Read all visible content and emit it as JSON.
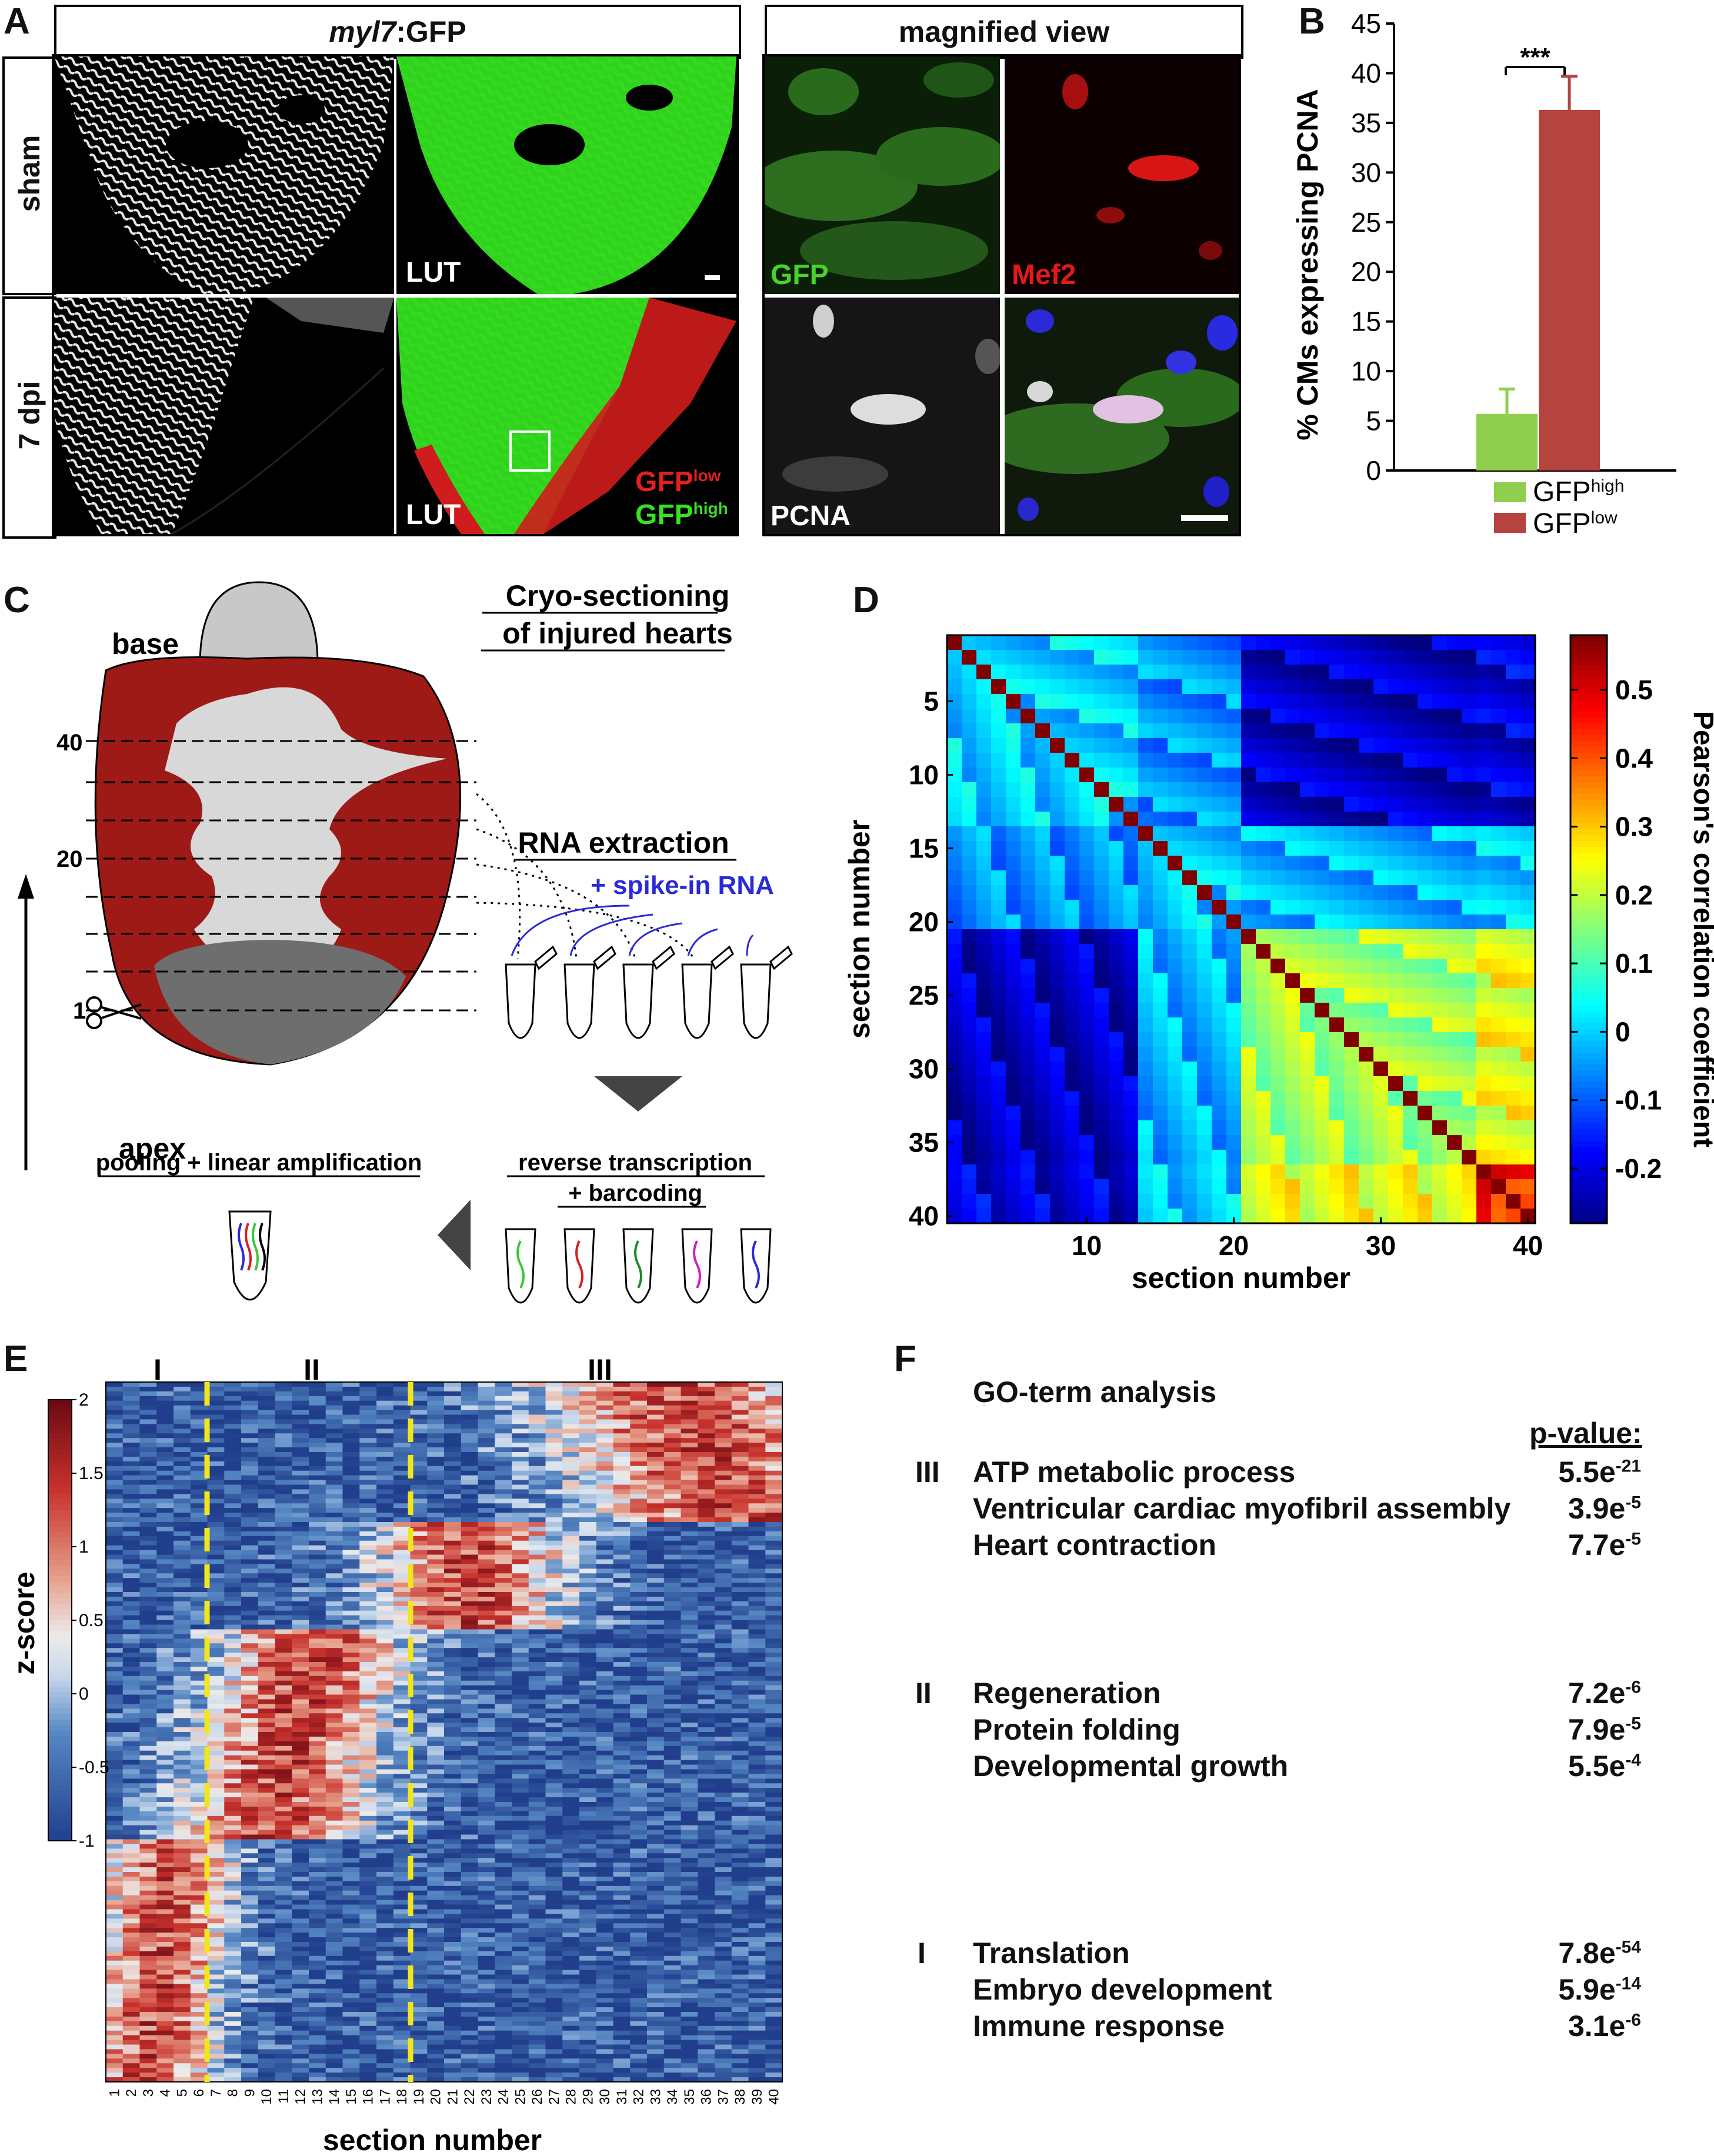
{
  "panel_letters": [
    "A",
    "B",
    "C",
    "D",
    "E",
    "F"
  ],
  "panelA": {
    "header_gene": "myl7",
    "header_rest": ":GFP",
    "header_magnified": "magnified view",
    "row_sham": "sham",
    "row_7dpi": "7 dpi",
    "lut1": "LUT",
    "lut2": "LUT",
    "gfp_low": "GFP",
    "gfp_low_sup": "low",
    "gfp_high": "GFP",
    "gfp_high_sup": "high",
    "mag_gfp": "GFP",
    "mag_mef2": "Mef2",
    "mag_pcna": "PCNA"
  },
  "panelB": {
    "significance": "***",
    "legend_high": "GFP",
    "legend_high_sup": "high",
    "legend_low": "GFP",
    "legend_low_sup": "low",
    "colors": {
      "high": "#8fce4e",
      "low": "#b5443f"
    }
  },
  "panelC": {
    "title_line1": "Cryo-sectioning",
    "title_line2": "of injured hearts",
    "base": "base",
    "apex": "apex",
    "sec40": "40",
    "sec20": "20",
    "sec1": "1",
    "rna_extraction": "RNA extraction",
    "spike_in": "+ spike-in RNA",
    "rt_line1": "reverse transcription",
    "rt_line2": "+ barcoding",
    "pooling": "pooling + linear amplification",
    "colors": {
      "myocardium": "#9e1a17",
      "lumen": "#d8d8d8",
      "bulbus": "#c8c8c8",
      "injury": "#707070",
      "spike": "#2a2ad6"
    }
  },
  "panelD": {
    "xlabel": "section number",
    "ylabel": "section number",
    "colorbar_label": "Pearson's correlation coefficient",
    "colorbar_ticks": [
      "0.5",
      "0.4",
      "0.3",
      "0.2",
      "0.1",
      "0",
      "-0.1",
      "-0.2"
    ]
  },
  "panelE": {
    "cluster_I": "I",
    "cluster_II": "II",
    "cluster_III": "III",
    "colorbar_label": "z-score",
    "colorbar_ticks": [
      "2",
      "1.5",
      "1",
      "0.5",
      "0",
      "-0.5",
      "-1"
    ],
    "xlabel": "section number"
  },
  "panelF": {
    "title": "GO-term analysis",
    "pvalue_header": "p-value:",
    "groups": [
      {
        "label": "III",
        "terms": [
          {
            "name": "ATP metabolic process",
            "base": "5.5e",
            "exp": "-21"
          },
          {
            "name": "Ventricular cardiac myofibril assembly",
            "base": "3.9e",
            "exp": "-5"
          },
          {
            "name": "Heart contraction",
            "base": "7.7e",
            "exp": "-5"
          }
        ]
      },
      {
        "label": "II",
        "terms": [
          {
            "name": "Regeneration",
            "base": "7.2e",
            "exp": "-6"
          },
          {
            "name": "Protein folding",
            "base": "7.9e",
            "exp": "-5"
          },
          {
            "name": "Developmental growth",
            "base": "5.5e",
            "exp": "-4"
          }
        ]
      },
      {
        "label": "I",
        "terms": [
          {
            "name": "Translation",
            "base": "7.8e",
            "exp": "-54"
          },
          {
            "name": "Embryo development",
            "base": "5.9e",
            "exp": "-14"
          },
          {
            "name": "Immune response",
            "base": "3.1e",
            "exp": "-6"
          }
        ]
      }
    ]
  },
  "chart_data": [
    {
      "type": "bar",
      "panel": "B",
      "categories": [
        "GFPhigh",
        "GFPlow"
      ],
      "values": [
        5.7,
        36.3
      ],
      "errors": [
        2.5,
        3.4
      ],
      "ylabel": "% CMs expressing PCNA",
      "ylim": [
        0,
        45
      ],
      "yticks": [
        0,
        5,
        10,
        15,
        20,
        25,
        30,
        35,
        40,
        45
      ]
    },
    {
      "type": "heatmap",
      "panel": "D",
      "x": "section 1-40",
      "y": "section 1-40",
      "xticks": [
        10,
        20,
        30,
        40
      ],
      "yticks": [
        5,
        10,
        15,
        20,
        25,
        30,
        35,
        40
      ],
      "xlabel": "section number",
      "ylabel": "section number",
      "colorbar_range": [
        -0.28,
        0.58
      ],
      "blocks": {
        "1-13 x 1-13": 0.0,
        "1-13 x 14-20": -0.05,
        "1-13 x 21-40": -0.22,
        "14-20 x 14-20": 0.0,
        "14-20 x 21-40": -0.02,
        "21-36 x 21-36": 0.18,
        "21-36 x 37-40": 0.25,
        "37-40 x 37-40": 0.45
      }
    },
    {
      "type": "heatmap",
      "panel": "E",
      "xticks": [
        "1",
        "2",
        "3",
        "4",
        "5",
        "6",
        "7",
        "8",
        "9",
        "10",
        "11",
        "12",
        "13",
        "14",
        "15",
        "16",
        "17",
        "18",
        "19",
        "20",
        "21",
        "22",
        "23",
        "24",
        "25",
        "26",
        "27",
        "28",
        "29",
        "30",
        "31",
        "32",
        "33",
        "34",
        "35",
        "36",
        "37",
        "38",
        "39",
        "40"
      ],
      "xlabel": "section number",
      "colorbar_label": "z-score",
      "colorbar_range": [
        -1,
        2
      ],
      "clusters": [
        {
          "name": "I",
          "sections": "1-6"
        },
        {
          "name": "II",
          "sections": "7-18"
        },
        {
          "name": "III",
          "sections": "19-40"
        }
      ]
    }
  ]
}
